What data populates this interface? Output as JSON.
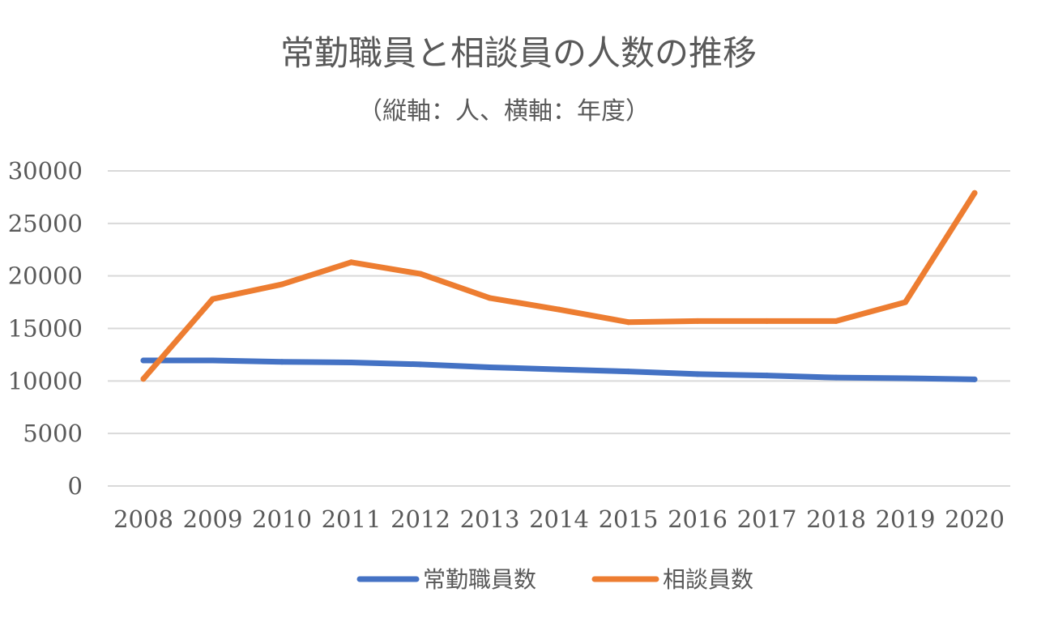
{
  "chart_data": {
    "type": "line",
    "title": "常勤職員と相談員の人数の推移",
    "subtitle": "（縦軸：人、横軸：年度）",
    "categories": [
      "2008",
      "2009",
      "2010",
      "2011",
      "2012",
      "2013",
      "2014",
      "2015",
      "2016",
      "2017",
      "2018",
      "2019",
      "2020"
    ],
    "series": [
      {
        "name": "常勤職員数",
        "color": "#4472C4",
        "values": [
          11950,
          11950,
          11820,
          11760,
          11580,
          11300,
          11100,
          10900,
          10650,
          10520,
          10320,
          10260,
          10150
        ]
      },
      {
        "name": "相談員数",
        "color": "#ED7D31",
        "values": [
          10200,
          17800,
          19200,
          21300,
          20200,
          17900,
          16800,
          15600,
          15700,
          15700,
          15700,
          17500,
          27900
        ]
      }
    ],
    "ylim": [
      0,
      30000
    ],
    "yticks": [
      0,
      5000,
      10000,
      15000,
      20000,
      25000,
      30000
    ],
    "grid": true,
    "legend_position": "bottom"
  }
}
